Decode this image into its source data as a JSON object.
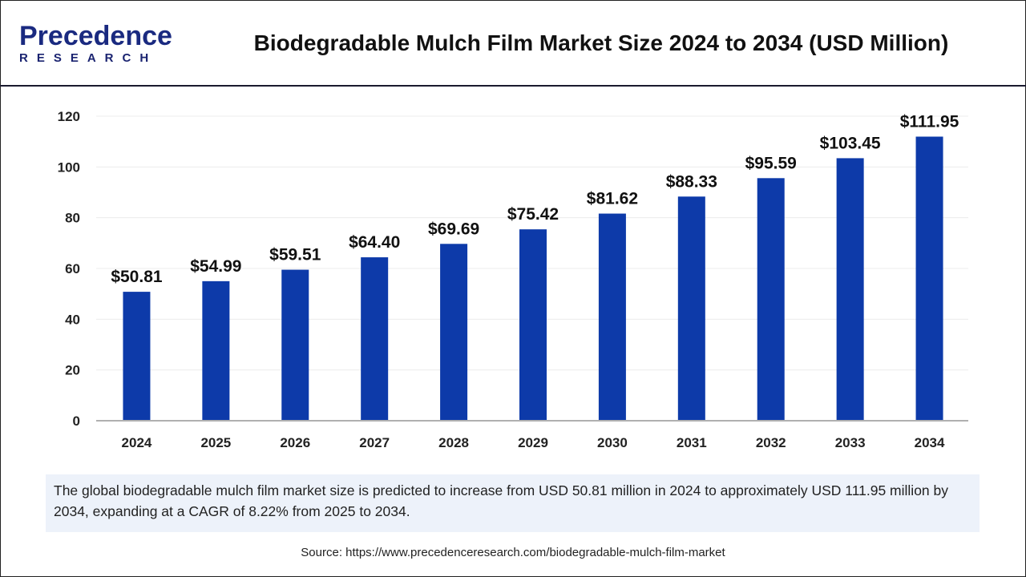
{
  "header": {
    "logo_text_top": "Precedence",
    "logo_text_bottom": "RESEARCH",
    "title": "Biodegradable Mulch Film Market Size 2024 to 2034 (USD Million)"
  },
  "chart_data": {
    "type": "bar",
    "title": "Biodegradable Mulch Film Market Size 2024 to 2034 (USD Million)",
    "categories": [
      "2024",
      "2025",
      "2026",
      "2027",
      "2028",
      "2029",
      "2030",
      "2031",
      "2032",
      "2033",
      "2034"
    ],
    "values": [
      50.81,
      54.99,
      59.51,
      64.4,
      69.69,
      75.42,
      81.62,
      88.33,
      95.59,
      103.45,
      111.95
    ],
    "data_labels": [
      "$50.81",
      "$54.99",
      "$59.51",
      "$64.40",
      "$69.69",
      "$75.42",
      "$81.62",
      "$88.33",
      "$95.59",
      "$103.45",
      "$111.95"
    ],
    "yticks": [
      0,
      20,
      40,
      60,
      80,
      100,
      120
    ],
    "ylim": [
      0,
      120
    ],
    "xlabel": "",
    "ylabel": "",
    "grid": true,
    "bar_color": "#0d3aa9"
  },
  "note": "The global biodegradable mulch film market size is predicted to increase from USD 50.81 million in 2024 to approximately USD 111.95 million by 2034, expanding at a CAGR of 8.22% from 2025 to 2034.",
  "source": "Source: https://www.precedenceresearch.com/biodegradable-mulch-film-market"
}
